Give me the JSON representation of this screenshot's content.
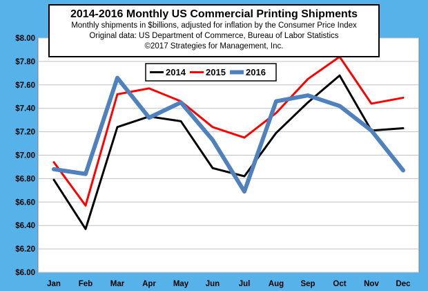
{
  "chart_data": {
    "type": "line",
    "title": "2014-2016 Monthly US Commercial Printing Shipments",
    "subtitle_lines": [
      "Monthly shipments in $billions, adjusted for inflation by the Consumer Price Index",
      "Original data: US Department of Commerce, Bureau of Labor Statistics",
      "©2017 Strategies for Management, Inc."
    ],
    "categories": [
      "Jan",
      "Feb",
      "Mar",
      "Apr",
      "May",
      "Jun",
      "Jul",
      "Aug",
      "Sep",
      "Oct",
      "Nov",
      "Dec"
    ],
    "y_tick_labels": [
      "$6.00",
      "$6.20",
      "$6.40",
      "$6.60",
      "$6.80",
      "$7.00",
      "$7.20",
      "$7.40",
      "$7.60",
      "$7.80",
      "$8.00"
    ],
    "ylim": [
      6.0,
      8.0
    ],
    "y_step": 0.2,
    "grid": true,
    "legend_placement": "top-center",
    "series": [
      {
        "name": "2014",
        "color": "#000000",
        "values": [
          6.79,
          6.37,
          7.24,
          7.33,
          7.29,
          6.89,
          6.82,
          7.19,
          7.45,
          7.68,
          7.21,
          7.23
        ]
      },
      {
        "name": "2015",
        "color": "#ff0000",
        "values": [
          6.94,
          6.57,
          7.52,
          7.57,
          7.46,
          7.24,
          7.15,
          7.36,
          7.65,
          7.84,
          7.44,
          7.49
        ]
      },
      {
        "name": "2016",
        "color": "#4f81bd",
        "values": [
          6.88,
          6.84,
          7.66,
          7.32,
          7.45,
          7.13,
          6.69,
          7.46,
          7.51,
          7.42,
          7.21,
          6.87
        ]
      }
    ]
  }
}
